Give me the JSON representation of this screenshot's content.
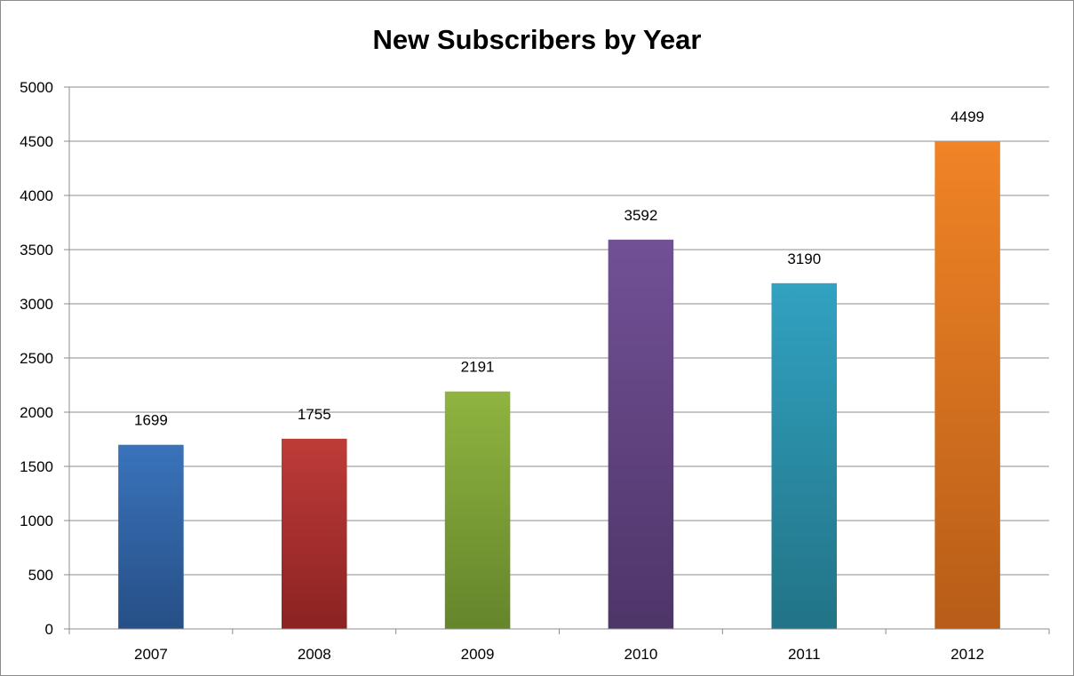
{
  "chart_data": {
    "type": "bar",
    "title": "New Subscribers by Year",
    "xlabel": "",
    "ylabel": "",
    "categories": [
      "2007",
      "2008",
      "2009",
      "2010",
      "2011",
      "2012"
    ],
    "values": [
      1699,
      1755,
      2191,
      3592,
      3190,
      4499
    ],
    "data_labels": [
      "1699",
      "1755",
      "2191",
      "3592",
      "3190",
      "4499"
    ],
    "ylim": [
      0,
      5000
    ],
    "yticks": [
      0,
      500,
      1000,
      1500,
      2000,
      2500,
      3000,
      3500,
      4000,
      4500,
      5000
    ],
    "ytick_labels": [
      "0",
      "500",
      "1000",
      "1500",
      "2000",
      "2500",
      "3000",
      "3500",
      "4000",
      "4500",
      "5000"
    ],
    "grid": true,
    "legend": "none",
    "bar_colors": [
      {
        "top": "#3a73bb",
        "bottom": "#264f86"
      },
      {
        "top": "#bf3b38",
        "bottom": "#8a2322"
      },
      {
        "top": "#8fb440",
        "bottom": "#65852b"
      },
      {
        "top": "#725096",
        "bottom": "#4e3568"
      },
      {
        "top": "#31a2c1",
        "bottom": "#227386"
      },
      {
        "top": "#f08426",
        "bottom": "#b75d18"
      }
    ]
  }
}
